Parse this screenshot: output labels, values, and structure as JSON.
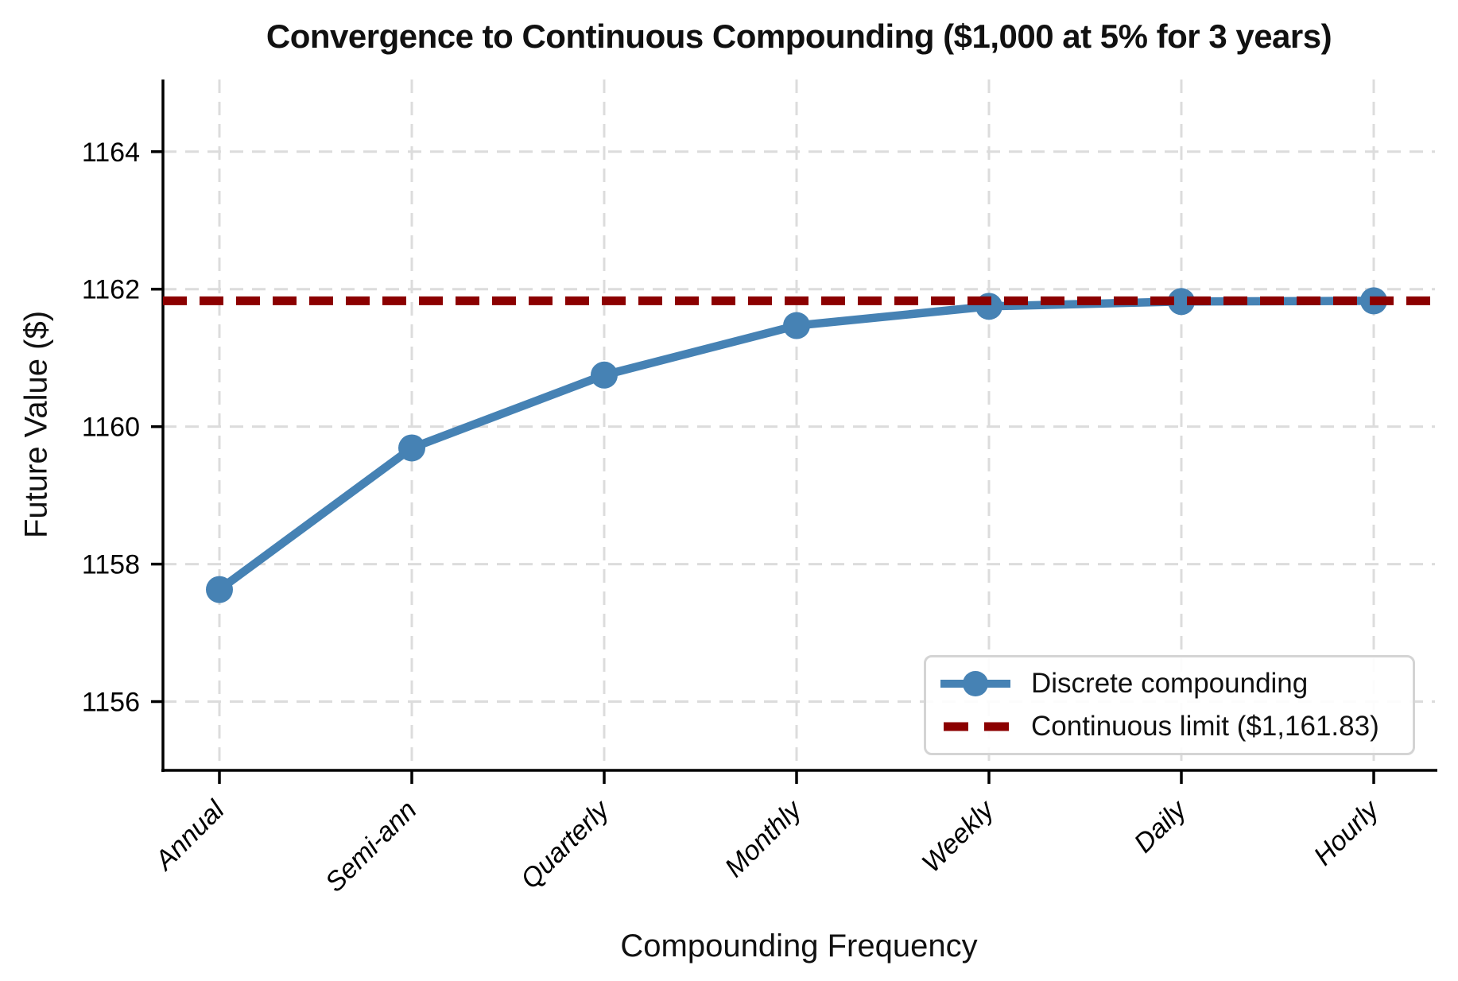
{
  "chart_data": {
    "type": "line",
    "title": "Convergence to Continuous Compounding ($1,000 at 5% for 3 years)",
    "xlabel": "Compounding Frequency",
    "ylabel": "Future Value ($)",
    "categories": [
      "Annual",
      "Semi-ann",
      "Quarterly",
      "Monthly",
      "Weekly",
      "Daily",
      "Hourly"
    ],
    "series": [
      {
        "name": "Discrete compounding",
        "type": "line",
        "marker": "circle",
        "color": "#4682b4",
        "values": [
          1157.63,
          1159.69,
          1160.75,
          1161.47,
          1161.75,
          1161.82,
          1161.83
        ]
      },
      {
        "name": "Continuous limit ($1,161.83)",
        "type": "hline",
        "style": "dashed",
        "color": "#8b0000",
        "value": 1161.83
      }
    ],
    "yticks": [
      1156,
      1158,
      1160,
      1162,
      1164
    ],
    "ylim": [
      1155,
      1165.05
    ],
    "grid": true,
    "grid_style": "dashed",
    "legend_position": "lower right",
    "styles": {
      "grid_color": "#dcdcdc",
      "spine_color": "#000000",
      "tick_label_color": "#000000",
      "x_tick_style": "italic, rotated 45"
    }
  },
  "legend": {
    "items": [
      {
        "label": "Discrete compounding",
        "color": "#4682b4",
        "swatch": "line-with-circle-marker"
      },
      {
        "label": "Continuous limit ($1,161.83)",
        "color": "#8b0000",
        "swatch": "dashed-line"
      }
    ]
  }
}
